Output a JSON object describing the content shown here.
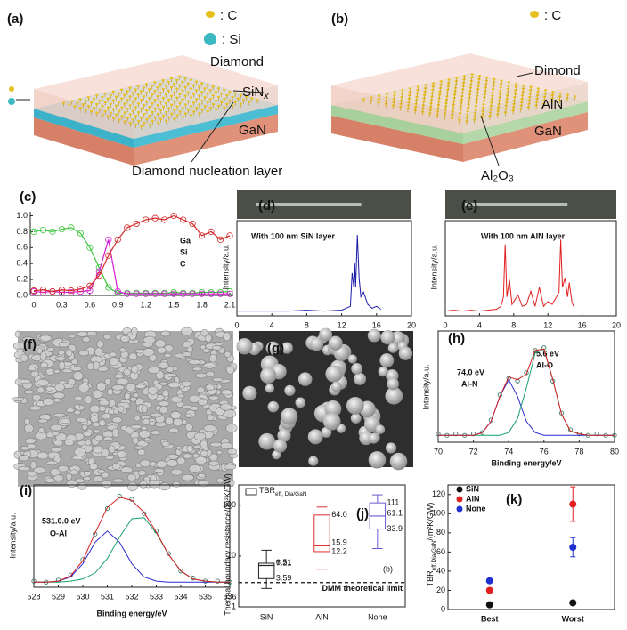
{
  "diagrams": {
    "a": {
      "label": "(a)",
      "c_key": ": C",
      "si_key": ": Si",
      "top": "Diamond",
      "middle": {
        "main": "SiN",
        "sub": "x"
      },
      "bottom": "GaN",
      "nucleation": "Diamond nucleation layer"
    },
    "b": {
      "label": "(b)",
      "c_key": ": C",
      "top": "Dimond",
      "middle": "AlN",
      "bottom": "GaN",
      "interlayer": "Al₂O₃"
    }
  },
  "images": {
    "f": {
      "label": "(f)"
    },
    "g": {
      "label": "(g)"
    }
  },
  "chart_data": [
    {
      "label": "(c)",
      "type": "line",
      "x": [
        0,
        0.1,
        0.2,
        0.3,
        0.4,
        0.5,
        0.6,
        0.7,
        0.8,
        0.9,
        1.0,
        1.1,
        1.2,
        1.3,
        1.4,
        1.5,
        1.6,
        1.7,
        1.8,
        1.9,
        2.0,
        2.1
      ],
      "xlim": [
        0,
        2.1
      ],
      "xticks": [
        0,
        0.3,
        0.6,
        0.9,
        1.2,
        1.5,
        1.8,
        2.1
      ],
      "ylim": [
        0,
        1.05
      ],
      "yticks": [
        {
          "value": 0,
          "label": "0.0"
        },
        0.2,
        0.4,
        0.6,
        0.8,
        {
          "value": 1,
          "label": "1.0"
        }
      ],
      "series": [
        {
          "name": "Ga",
          "color": "#3cc43c",
          "marker": "circle",
          "values": [
            0.8,
            0.82,
            0.8,
            0.83,
            0.85,
            0.78,
            0.6,
            0.35,
            0.1,
            0.03,
            0.03,
            0.03,
            0.03,
            0.03,
            0.03,
            0.04,
            0.03,
            0.03,
            0.04,
            0.04,
            0.04,
            0.05
          ]
        },
        {
          "name": "Si",
          "color": "#d21fd2",
          "marker": "circle",
          "values": [
            0.05,
            0.04,
            0.05,
            0.04,
            0.04,
            0.05,
            0.06,
            0.3,
            0.7,
            0.05,
            0.02,
            0.02,
            0.02,
            0.02,
            0.02,
            0.02,
            0.02,
            0.02,
            0.02,
            0.02,
            0.02,
            0.02
          ]
        },
        {
          "name": "C",
          "color": "#d42a2a",
          "marker": "circle",
          "values": [
            0.06,
            0.07,
            0.05,
            0.07,
            0.06,
            0.08,
            0.12,
            0.25,
            0.5,
            0.7,
            0.85,
            0.9,
            0.95,
            0.97,
            0.95,
            1.0,
            0.95,
            0.9,
            0.75,
            0.8,
            0.7,
            0.75
          ]
        }
      ]
    },
    {
      "label": "(d)",
      "type": "line",
      "ylabel": "Intensity/a.u.",
      "annotations": [
        "With 100 nm SiN layer"
      ],
      "x": [
        0,
        2,
        4,
        6,
        8,
        10,
        12,
        12.5,
        13,
        13.2,
        13.4,
        13.5,
        13.6,
        13.8,
        14,
        14.2,
        14.5,
        15,
        15.5,
        16,
        16.5
      ],
      "xlim": [
        0,
        20
      ],
      "xticks": [
        0,
        4,
        8,
        12,
        16,
        20
      ],
      "ylim": [
        0,
        1
      ],
      "series": [
        {
          "color": "#1a1aa8",
          "values": [
            0.05,
            0.05,
            0.05,
            0.05,
            0.06,
            0.05,
            0.06,
            0.08,
            0.1,
            0.45,
            0.3,
            0.55,
            0.3,
            0.85,
            0.4,
            0.2,
            0.25,
            0.12,
            0.08,
            0.1,
            0.07
          ]
        }
      ]
    },
    {
      "label": "(e)",
      "type": "line",
      "ylabel": "Intensity/a.u.",
      "annotations": [
        "With 100 nm AlN layer"
      ],
      "x": [
        0,
        1,
        2,
        3,
        4,
        5,
        6,
        6.5,
        6.8,
        7,
        7.2,
        7.5,
        7.8,
        8,
        8.5,
        9,
        9.5,
        10,
        10.5,
        11,
        11.5,
        12,
        12.5,
        13,
        13.3,
        13.5,
        13.7,
        14,
        14.3,
        14.5,
        14.8,
        15
      ],
      "xlim": [
        0,
        20
      ],
      "xticks": [
        0,
        4,
        8,
        12,
        16,
        20
      ],
      "ylim": [
        0,
        1
      ],
      "series": [
        {
          "color": "#e02020",
          "values": [
            0.05,
            0.06,
            0.05,
            0.06,
            0.05,
            0.06,
            0.07,
            0.1,
            0.2,
            0.75,
            0.2,
            0.38,
            0.12,
            0.15,
            0.22,
            0.1,
            0.12,
            0.26,
            0.1,
            0.3,
            0.1,
            0.15,
            0.12,
            0.2,
            0.25,
            0.8,
            0.3,
            0.4,
            0.2,
            0.35,
            0.15,
            0.1
          ]
        }
      ]
    },
    {
      "label": "(h)",
      "type": "line",
      "xlabel": "Binding energy/eV",
      "ylabel": "Intensity/a.u.",
      "annotations": [
        "74.0 eV",
        "Al-N",
        "75.6 eV",
        "Al-O"
      ],
      "x": [
        70,
        70.5,
        71,
        71.5,
        72,
        72.5,
        73,
        73.5,
        74,
        74.5,
        75,
        75.5,
        76,
        76.5,
        77,
        77.5,
        78,
        78.5,
        79,
        79.5,
        80
      ],
      "xlim": [
        70,
        80
      ],
      "xticks": [
        70,
        72,
        74,
        76,
        78,
        80
      ],
      "ylim": [
        0,
        0.8
      ],
      "series": [
        {
          "color": "#2a6e5a",
          "marker": "circle",
          "line": false,
          "values": [
            0.06,
            0.05,
            0.06,
            0.05,
            0.06,
            0.07,
            0.16,
            0.34,
            0.46,
            0.44,
            0.5,
            0.66,
            0.68,
            0.44,
            0.21,
            0.09,
            0.06,
            0.05,
            0.06,
            0.05,
            0.05
          ]
        },
        {
          "color": "#2a2ad0",
          "values": [
            0.05,
            0.05,
            0.05,
            0.05,
            0.05,
            0.07,
            0.15,
            0.33,
            0.45,
            0.33,
            0.15,
            0.07,
            0.05,
            0.05,
            0.05,
            0.05,
            0.05,
            0.05,
            0.05,
            0.05,
            0.05
          ]
        },
        {
          "color": "#1aa070",
          "values": [
            0.05,
            0.05,
            0.05,
            0.05,
            0.05,
            0.05,
            0.05,
            0.05,
            0.07,
            0.17,
            0.39,
            0.64,
            0.67,
            0.45,
            0.2,
            0.08,
            0.06,
            0.05,
            0.05,
            0.05,
            0.05
          ]
        },
        {
          "color": "#d42020",
          "values": [
            0.05,
            0.05,
            0.05,
            0.05,
            0.05,
            0.068,
            0.15,
            0.33,
            0.47,
            0.45,
            0.49,
            0.66,
            0.67,
            0.45,
            0.2,
            0.08,
            0.06,
            0.05,
            0.05,
            0.05,
            0.05
          ]
        }
      ]
    },
    {
      "label": "(i)",
      "type": "line",
      "xlabel": "Binding energy/eV",
      "ylabel": "Intensity/a.u.",
      "annotations": [
        "531.0.0 eV",
        "O-Al"
      ],
      "x": [
        528,
        528.5,
        529,
        529.5,
        530,
        530.5,
        531,
        531.5,
        532,
        532.5,
        533,
        533.5,
        534,
        534.5,
        535,
        535.5,
        536
      ],
      "xlim": [
        528,
        536
      ],
      "xticks": [
        528,
        529,
        530,
        531,
        532,
        533,
        534,
        535,
        536
      ],
      "ylim": [
        0,
        1
      ],
      "series": [
        {
          "color": "#2a6e5a",
          "marker": "circle",
          "line": false,
          "values": [
            0.06,
            0.05,
            0.07,
            0.12,
            0.27,
            0.52,
            0.77,
            0.89,
            0.86,
            0.72,
            0.55,
            0.33,
            0.16,
            0.09,
            0.06,
            0.06,
            0.05
          ]
        },
        {
          "color": "#2a2ad0",
          "values": [
            0.05,
            0.05,
            0.06,
            0.1,
            0.23,
            0.44,
            0.55,
            0.44,
            0.23,
            0.1,
            0.06,
            0.05,
            0.05,
            0.05,
            0.05,
            0.05,
            0.05
          ]
        },
        {
          "color": "#1aa070",
          "values": [
            0.05,
            0.05,
            0.05,
            0.06,
            0.08,
            0.14,
            0.28,
            0.49,
            0.67,
            0.68,
            0.53,
            0.32,
            0.16,
            0.08,
            0.06,
            0.05,
            0.05
          ]
        },
        {
          "color": "#d42020",
          "values": [
            0.05,
            0.05,
            0.06,
            0.11,
            0.26,
            0.53,
            0.78,
            0.88,
            0.85,
            0.73,
            0.54,
            0.32,
            0.16,
            0.08,
            0.06,
            0.05,
            0.05
          ]
        }
      ]
    },
    {
      "label": "(j)",
      "type": "box",
      "ylabel": "Thermal boundary resistance/(m²K/GW)",
      "legend": {
        "main": "TBR",
        "sub": "eff, Dia/GaN"
      },
      "note": "(b)",
      "ref_line": 3,
      "ref_label": "DMM theoretical limit",
      "log": true,
      "ylim": [
        1,
        250
      ],
      "yticks": [
        1,
        10,
        100
      ],
      "categories": [
        "SiN",
        "AlN",
        "None"
      ],
      "boxes": [
        {
          "color": "#222222",
          "min": 2.3,
          "q1": 3.59,
          "median": 6.51,
          "q3": 7.21,
          "max": 13
        },
        {
          "color": "#e03030",
          "min": 5.5,
          "q1": 12.2,
          "median": 15.9,
          "q3": 64.0,
          "q3_label": "64.0",
          "max": 92
        },
        {
          "color": "#6a5ad0",
          "min": 14,
          "q1": 33.9,
          "median": 61.1,
          "q3": 111,
          "max": 160
        }
      ]
    },
    {
      "label": "(k)",
      "type": "scatter",
      "ylabel": {
        "main": "TBR",
        "sub": "eff,Dia/GaN",
        "tail": "/(m²K/GW)"
      },
      "categories": [
        "Best",
        "Worst"
      ],
      "ylim": [
        0,
        130
      ],
      "yticks": [
        0,
        20,
        40,
        60,
        80,
        100,
        120
      ],
      "legend": "upper left",
      "series": [
        {
          "name": "SiN",
          "color": "#111111",
          "values": [
            5,
            7
          ]
        },
        {
          "name": "AlN",
          "color": "#e02020",
          "values": [
            20,
            110
          ],
          "errors": [
            null,
            18
          ]
        },
        {
          "name": "None",
          "color": "#2030d0",
          "values": [
            30,
            65
          ],
          "errors": [
            null,
            10
          ]
        }
      ]
    }
  ]
}
